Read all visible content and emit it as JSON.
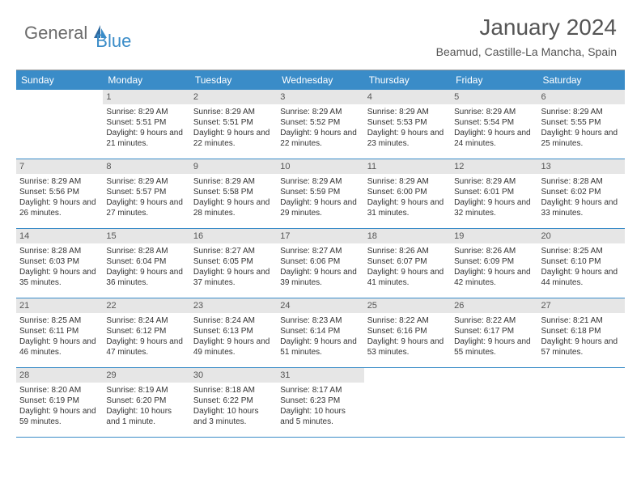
{
  "logo": {
    "part1": "General",
    "part2": "Blue"
  },
  "title": "January 2024",
  "location": "Beamud, Castille-La Mancha, Spain",
  "colors": {
    "header_bg": "#3a8cc8",
    "daynum_bg": "#e6e6e6",
    "row_border": "#3a8cc8",
    "text": "#333333"
  },
  "weekdays": [
    "Sunday",
    "Monday",
    "Tuesday",
    "Wednesday",
    "Thursday",
    "Friday",
    "Saturday"
  ],
  "weeks": [
    [
      {
        "n": "",
        "sr": "",
        "ss": "",
        "dl": ""
      },
      {
        "n": "1",
        "sr": "Sunrise: 8:29 AM",
        "ss": "Sunset: 5:51 PM",
        "dl": "Daylight: 9 hours and 21 minutes."
      },
      {
        "n": "2",
        "sr": "Sunrise: 8:29 AM",
        "ss": "Sunset: 5:51 PM",
        "dl": "Daylight: 9 hours and 22 minutes."
      },
      {
        "n": "3",
        "sr": "Sunrise: 8:29 AM",
        "ss": "Sunset: 5:52 PM",
        "dl": "Daylight: 9 hours and 22 minutes."
      },
      {
        "n": "4",
        "sr": "Sunrise: 8:29 AM",
        "ss": "Sunset: 5:53 PM",
        "dl": "Daylight: 9 hours and 23 minutes."
      },
      {
        "n": "5",
        "sr": "Sunrise: 8:29 AM",
        "ss": "Sunset: 5:54 PM",
        "dl": "Daylight: 9 hours and 24 minutes."
      },
      {
        "n": "6",
        "sr": "Sunrise: 8:29 AM",
        "ss": "Sunset: 5:55 PM",
        "dl": "Daylight: 9 hours and 25 minutes."
      }
    ],
    [
      {
        "n": "7",
        "sr": "Sunrise: 8:29 AM",
        "ss": "Sunset: 5:56 PM",
        "dl": "Daylight: 9 hours and 26 minutes."
      },
      {
        "n": "8",
        "sr": "Sunrise: 8:29 AM",
        "ss": "Sunset: 5:57 PM",
        "dl": "Daylight: 9 hours and 27 minutes."
      },
      {
        "n": "9",
        "sr": "Sunrise: 8:29 AM",
        "ss": "Sunset: 5:58 PM",
        "dl": "Daylight: 9 hours and 28 minutes."
      },
      {
        "n": "10",
        "sr": "Sunrise: 8:29 AM",
        "ss": "Sunset: 5:59 PM",
        "dl": "Daylight: 9 hours and 29 minutes."
      },
      {
        "n": "11",
        "sr": "Sunrise: 8:29 AM",
        "ss": "Sunset: 6:00 PM",
        "dl": "Daylight: 9 hours and 31 minutes."
      },
      {
        "n": "12",
        "sr": "Sunrise: 8:29 AM",
        "ss": "Sunset: 6:01 PM",
        "dl": "Daylight: 9 hours and 32 minutes."
      },
      {
        "n": "13",
        "sr": "Sunrise: 8:28 AM",
        "ss": "Sunset: 6:02 PM",
        "dl": "Daylight: 9 hours and 33 minutes."
      }
    ],
    [
      {
        "n": "14",
        "sr": "Sunrise: 8:28 AM",
        "ss": "Sunset: 6:03 PM",
        "dl": "Daylight: 9 hours and 35 minutes."
      },
      {
        "n": "15",
        "sr": "Sunrise: 8:28 AM",
        "ss": "Sunset: 6:04 PM",
        "dl": "Daylight: 9 hours and 36 minutes."
      },
      {
        "n": "16",
        "sr": "Sunrise: 8:27 AM",
        "ss": "Sunset: 6:05 PM",
        "dl": "Daylight: 9 hours and 37 minutes."
      },
      {
        "n": "17",
        "sr": "Sunrise: 8:27 AM",
        "ss": "Sunset: 6:06 PM",
        "dl": "Daylight: 9 hours and 39 minutes."
      },
      {
        "n": "18",
        "sr": "Sunrise: 8:26 AM",
        "ss": "Sunset: 6:07 PM",
        "dl": "Daylight: 9 hours and 41 minutes."
      },
      {
        "n": "19",
        "sr": "Sunrise: 8:26 AM",
        "ss": "Sunset: 6:09 PM",
        "dl": "Daylight: 9 hours and 42 minutes."
      },
      {
        "n": "20",
        "sr": "Sunrise: 8:25 AM",
        "ss": "Sunset: 6:10 PM",
        "dl": "Daylight: 9 hours and 44 minutes."
      }
    ],
    [
      {
        "n": "21",
        "sr": "Sunrise: 8:25 AM",
        "ss": "Sunset: 6:11 PM",
        "dl": "Daylight: 9 hours and 46 minutes."
      },
      {
        "n": "22",
        "sr": "Sunrise: 8:24 AM",
        "ss": "Sunset: 6:12 PM",
        "dl": "Daylight: 9 hours and 47 minutes."
      },
      {
        "n": "23",
        "sr": "Sunrise: 8:24 AM",
        "ss": "Sunset: 6:13 PM",
        "dl": "Daylight: 9 hours and 49 minutes."
      },
      {
        "n": "24",
        "sr": "Sunrise: 8:23 AM",
        "ss": "Sunset: 6:14 PM",
        "dl": "Daylight: 9 hours and 51 minutes."
      },
      {
        "n": "25",
        "sr": "Sunrise: 8:22 AM",
        "ss": "Sunset: 6:16 PM",
        "dl": "Daylight: 9 hours and 53 minutes."
      },
      {
        "n": "26",
        "sr": "Sunrise: 8:22 AM",
        "ss": "Sunset: 6:17 PM",
        "dl": "Daylight: 9 hours and 55 minutes."
      },
      {
        "n": "27",
        "sr": "Sunrise: 8:21 AM",
        "ss": "Sunset: 6:18 PM",
        "dl": "Daylight: 9 hours and 57 minutes."
      }
    ],
    [
      {
        "n": "28",
        "sr": "Sunrise: 8:20 AM",
        "ss": "Sunset: 6:19 PM",
        "dl": "Daylight: 9 hours and 59 minutes."
      },
      {
        "n": "29",
        "sr": "Sunrise: 8:19 AM",
        "ss": "Sunset: 6:20 PM",
        "dl": "Daylight: 10 hours and 1 minute."
      },
      {
        "n": "30",
        "sr": "Sunrise: 8:18 AM",
        "ss": "Sunset: 6:22 PM",
        "dl": "Daylight: 10 hours and 3 minutes."
      },
      {
        "n": "31",
        "sr": "Sunrise: 8:17 AM",
        "ss": "Sunset: 6:23 PM",
        "dl": "Daylight: 10 hours and 5 minutes."
      },
      {
        "n": "",
        "sr": "",
        "ss": "",
        "dl": ""
      },
      {
        "n": "",
        "sr": "",
        "ss": "",
        "dl": ""
      },
      {
        "n": "",
        "sr": "",
        "ss": "",
        "dl": ""
      }
    ]
  ]
}
